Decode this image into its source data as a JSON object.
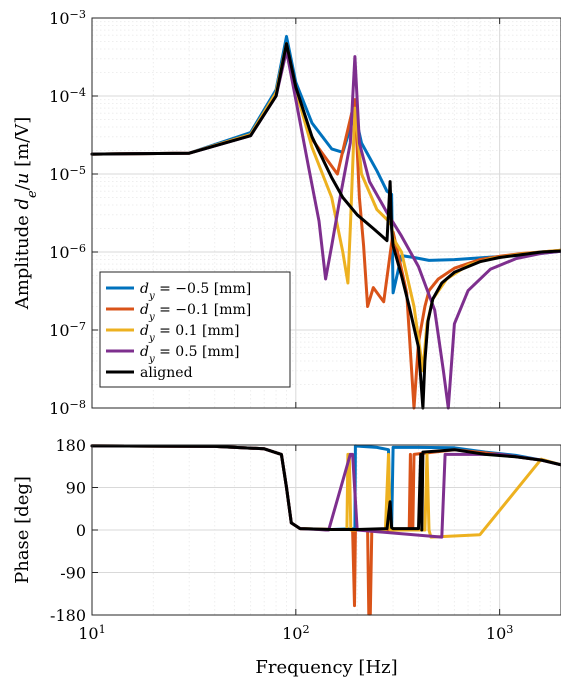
{
  "chart_data": [
    {
      "type": "line",
      "ylabel": "Amplitude d_e/u [m/V]",
      "xscale": "log",
      "yscale": "log",
      "xlim": [
        10,
        2000
      ],
      "ylim": [
        1e-08,
        0.001
      ],
      "xticks": [
        10,
        100,
        1000
      ],
      "xtick_labels": [
        "",
        "",
        ""
      ],
      "yticks": [
        1e-08,
        1e-07,
        1e-06,
        1e-05,
        0.0001,
        0.001
      ],
      "ytick_labels": [
        {
          "base": "10",
          "exp": "−8"
        },
        {
          "base": "10",
          "exp": "−7"
        },
        {
          "base": "10",
          "exp": "−6"
        },
        {
          "base": "10",
          "exp": "−5"
        },
        {
          "base": "10",
          "exp": "−4"
        },
        {
          "base": "10",
          "exp": "−3"
        }
      ],
      "grid": true,
      "legend_position": "lower-left",
      "legend": [
        {
          "label": "d_y = −0.5 [mm]",
          "color": "#0072BD"
        },
        {
          "label": "d_y = −0.1 [mm]",
          "color": "#D95319"
        },
        {
          "label": "d_y = 0.1 [mm]",
          "color": "#EDB120"
        },
        {
          "label": "d_y = 0.5 [mm]",
          "color": "#7E2F8E"
        },
        {
          "label": "aligned",
          "color": "#000000"
        }
      ],
      "series": [
        {
          "name": "d_y = −0.5 [mm]",
          "color": "#0072BD",
          "x": [
            10,
            30,
            60,
            80,
            90,
            100,
            120,
            150,
            170,
            195,
            210,
            250,
            280,
            295,
            300,
            330,
            380,
            450,
            600,
            850,
            1200,
            1600,
            2000
          ],
          "y": [
            1.8e-05,
            1.85e-05,
            3.4e-05,
            0.00012,
            0.00058,
            0.00015,
            4.5e-05,
            2.1e-05,
            1.9e-05,
            6e-05,
            2.5e-05,
            1.1e-05,
            6e-06,
            5.5e-06,
            3e-07,
            9e-07,
            8.5e-07,
            7.8e-07,
            8e-07,
            8.5e-07,
            9e-07,
            9.6e-07,
            1.02e-06
          ]
        },
        {
          "name": "d_y = −0.1 [mm]",
          "color": "#D95319",
          "x": [
            10,
            30,
            60,
            80,
            90,
            100,
            120,
            160,
            195,
            205,
            215,
            225,
            240,
            270,
            300,
            330,
            350,
            380,
            400,
            430,
            450,
            500,
            600,
            800,
            1000,
            1300,
            1600,
            2000
          ],
          "y": [
            1.8e-05,
            1.85e-05,
            3.2e-05,
            0.00011,
            0.00046,
            0.00013,
            2.8e-05,
            1e-05,
            9e-05,
            5e-06,
            1.2e-06,
            2e-07,
            3.5e-07,
            2.3e-07,
            1.8e-06,
            6e-07,
            3e-07,
            1e-08,
            7e-08,
            2e-07,
            3.2e-07,
            4.5e-07,
            6.2e-07,
            8e-07,
            8.8e-07,
            9.6e-07,
            1e-06,
            1.05e-06
          ]
        },
        {
          "name": "d_y = 0.1 [mm]",
          "color": "#EDB120",
          "x": [
            10,
            30,
            60,
            80,
            90,
            100,
            120,
            150,
            170,
            180,
            185,
            195,
            210,
            250,
            280,
            295,
            300,
            330,
            380,
            420,
            440,
            470,
            550,
            700,
            900,
            1200,
            1600,
            2000
          ],
          "y": [
            1.8e-05,
            1.85e-05,
            3.2e-05,
            0.00011,
            0.00047,
            0.00012,
            2.2e-05,
            5e-06,
            1e-06,
            4e-07,
            2e-06,
            7e-05,
            1e-05,
            3.5e-06,
            2.6e-06,
            2.2e-06,
            1.5e-06,
            1e-06,
            2e-07,
            3e-08,
            1.2e-07,
            2.5e-07,
            4.5e-07,
            6.8e-07,
            8.2e-07,
            9.2e-07,
            1e-06,
            1.05e-06
          ]
        },
        {
          "name": "d_y = 0.5 [mm]",
          "color": "#7E2F8E",
          "x": [
            10,
            30,
            60,
            80,
            90,
            100,
            115,
            130,
            140,
            150,
            165,
            185,
            195,
            205,
            230,
            280,
            330,
            400,
            480,
            530,
            560,
            600,
            700,
            900,
            1200,
            1600,
            2000
          ],
          "y": [
            1.8e-05,
            1.85e-05,
            3.1e-05,
            0.0001,
            0.00038,
            9e-05,
            1.3e-05,
            2.5e-06,
            4.5e-07,
            1.2e-06,
            5e-06,
            2.5e-05,
            0.00032,
            2.5e-05,
            8e-06,
            3.2e-06,
            1.6e-06,
            6.5e-07,
            1.8e-07,
            3e-08,
            1e-08,
            1.2e-07,
            3.2e-07,
            6e-07,
            8.2e-07,
            9.6e-07,
            1.02e-06
          ]
        },
        {
          "name": "aligned",
          "color": "#000000",
          "x": [
            10,
            30,
            60,
            80,
            90,
            100,
            120,
            150,
            170,
            200,
            240,
            280,
            290,
            295,
            300,
            330,
            360,
            400,
            420,
            430,
            445,
            470,
            520,
            600,
            800,
            1000,
            1300,
            1600,
            2000
          ],
          "y": [
            1.8e-05,
            1.85e-05,
            3.1e-05,
            0.0001,
            0.00047,
            0.00013,
            3e-05,
            9e-06,
            5e-06,
            3e-06,
            2e-06,
            1.4e-06,
            8e-06,
            2e-06,
            1.2e-06,
            5e-07,
            2e-07,
            6e-08,
            1e-08,
            4e-08,
            1.3e-07,
            2.5e-07,
            4e-07,
            5.5e-07,
            7.5e-07,
            8.5e-07,
            9.3e-07,
            1e-06,
            1.03e-06
          ]
        }
      ]
    },
    {
      "type": "line",
      "xlabel": "Frequency [Hz]",
      "ylabel": "Phase [deg]",
      "xscale": "log",
      "xlim": [
        10,
        2000
      ],
      "ylim": [
        -180,
        180
      ],
      "xticks": [
        10,
        100,
        1000
      ],
      "xtick_labels": [
        {
          "base": "10",
          "exp": "1"
        },
        {
          "base": "10",
          "exp": "2"
        },
        {
          "base": "10",
          "exp": "3"
        }
      ],
      "yticks": [
        -180,
        -90,
        0,
        90,
        180
      ],
      "ytick_labels": [
        "-180",
        "-90",
        "0",
        "90",
        "180"
      ],
      "grid": true,
      "series": [
        {
          "name": "d_y = −0.5 [mm]",
          "color": "#0072BD",
          "x": [
            10,
            40,
            70,
            85,
            90,
            95,
            105,
            150,
            195,
            196,
            210,
            250,
            285,
            290,
            295,
            300,
            400,
            600,
            850,
            1200,
            1600,
            2000
          ],
          "y": [
            178,
            177,
            172,
            160,
            90,
            15,
            3,
            1,
            3,
            178,
            177,
            175,
            170,
            0,
            0,
            175,
            175,
            174,
            165,
            158,
            148,
            138
          ]
        },
        {
          "name": "d_y = −0.1 [mm]",
          "color": "#D95319",
          "x": [
            10,
            40,
            70,
            85,
            90,
            95,
            105,
            150,
            190,
            194,
            196,
            200,
            225,
            228,
            232,
            236,
            330,
            360,
            365,
            370,
            375,
            380,
            600,
            1000,
            1600,
            2000
          ],
          "y": [
            178,
            177,
            172,
            160,
            90,
            15,
            3,
            1,
            1,
            -160,
            0,
            0,
            1,
            -178,
            -178,
            0,
            0,
            1,
            160,
            0,
            0,
            160,
            170,
            160,
            148,
            138
          ]
        },
        {
          "name": "d_y = 0.1 [mm]",
          "color": "#EDB120",
          "x": [
            10,
            40,
            70,
            85,
            90,
            95,
            105,
            150,
            178,
            180,
            183,
            186,
            275,
            285,
            290,
            295,
            430,
            440,
            450,
            460,
            800,
            1600,
            2000
          ],
          "y": [
            178,
            177,
            172,
            160,
            90,
            15,
            3,
            1,
            1,
            160,
            160,
            0,
            0,
            160,
            0,
            0,
            0,
            160,
            0,
            -15,
            -10,
            150,
            138
          ]
        },
        {
          "name": "d_y = 0.5 [mm]",
          "color": "#7E2F8E",
          "x": [
            10,
            40,
            70,
            85,
            90,
            95,
            105,
            130,
            140,
            145,
            185,
            190,
            200,
            520,
            540,
            560,
            1000,
            1600,
            2000
          ],
          "y": [
            178,
            177,
            172,
            160,
            90,
            15,
            3,
            1,
            0,
            0,
            160,
            160,
            0,
            -15,
            160,
            160,
            160,
            148,
            138
          ]
        },
        {
          "name": "aligned",
          "color": "#000000",
          "x": [
            10,
            40,
            70,
            85,
            90,
            95,
            105,
            150,
            200,
            280,
            290,
            295,
            300,
            400,
            410,
            415,
            420,
            600,
            850,
            1200,
            1600,
            2000
          ],
          "y": [
            178,
            177,
            172,
            160,
            90,
            15,
            3,
            1,
            1,
            3,
            60,
            5,
            3,
            3,
            160,
            0,
            165,
            170,
            160,
            155,
            148,
            138
          ]
        }
      ]
    }
  ]
}
